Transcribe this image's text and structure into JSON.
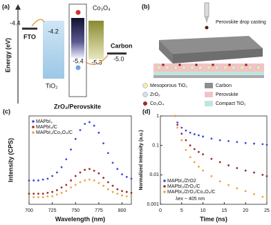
{
  "panel_labels": [
    "(a)",
    "(b)"
  ],
  "energy_diagram": {
    "y_label": "Energy (eV)",
    "fto": "FTO",
    "fto_level": "-4.4",
    "tio2": "TiO₂",
    "tio2_level": "-4.2",
    "perovskite_level": "-5.4",
    "co3o4": "Co₃O₄",
    "co3o4_level": "-5.3",
    "carbon": "Carbon",
    "carbon_level": "-5.0",
    "bottom_label": "ZrO₂/Perovskite"
  },
  "device_schematic": {
    "caption": "Perovskite drop casting",
    "legend": [
      "Mesoporous TiO₂",
      "Carbon",
      "ZrO₂",
      "Perovskite",
      "Co₃O₄",
      "Compact TiO₂"
    ]
  },
  "chart_data": [
    {
      "type": "scatter",
      "panel": "(c)",
      "x_label": "Wavelength (nm)",
      "y_label": "Intensity (CPS)",
      "x": [
        700,
        705,
        710,
        715,
        720,
        725,
        730,
        735,
        740,
        745,
        750,
        755,
        760,
        765,
        770,
        775,
        780,
        785,
        790,
        795,
        800,
        805,
        810
      ],
      "xlim": [
        700,
        810
      ],
      "xticks": [
        700,
        725,
        750,
        775,
        800
      ],
      "ylim": [
        0,
        1
      ],
      "legend": "upper left",
      "series": [
        {
          "name": "MAPbI₃",
          "color": "#3a4bd6",
          "values": [
            0.27,
            0.27,
            0.27,
            0.28,
            0.29,
            0.32,
            0.36,
            0.42,
            0.51,
            0.62,
            0.74,
            0.84,
            0.91,
            0.93,
            0.89,
            0.81,
            0.69,
            0.58,
            0.47,
            0.4,
            0.34,
            0.31,
            0.29
          ]
        },
        {
          "name": "MAPbI₃/C",
          "color": "#9b2a2a",
          "values": [
            0.12,
            0.12,
            0.12,
            0.12,
            0.13,
            0.14,
            0.16,
            0.19,
            0.22,
            0.27,
            0.32,
            0.36,
            0.39,
            0.4,
            0.38,
            0.35,
            0.3,
            0.25,
            0.21,
            0.17,
            0.15,
            0.14,
            0.13
          ]
        },
        {
          "name": "MAPbI₃/Co₃O₄/C",
          "color": "#f0a040",
          "values": [
            0.08,
            0.08,
            0.08,
            0.08,
            0.09,
            0.09,
            0.11,
            0.13,
            0.15,
            0.19,
            0.22,
            0.25,
            0.27,
            0.28,
            0.27,
            0.24,
            0.21,
            0.17,
            0.14,
            0.12,
            0.1,
            0.09,
            0.09
          ]
        }
      ]
    },
    {
      "type": "scatter",
      "panel": "(d)",
      "x_label": "Time (ns)",
      "y_label": "Normalized Intensity (a.u.)",
      "yscale": "log",
      "x": [
        3.5,
        4,
        5,
        6,
        7,
        8,
        9,
        10,
        12,
        14,
        16,
        18,
        20,
        22,
        24,
        25
      ],
      "xlim": [
        0,
        25
      ],
      "xticks": [
        0,
        5,
        10,
        15,
        20,
        25
      ],
      "ylim": [
        0.001,
        1
      ],
      "yticks": [
        0.001,
        0.01,
        0.1,
        1
      ],
      "legend": "lower left",
      "annotation": "λex ~ 405 nm",
      "series": [
        {
          "name": "MAPbI₃/ZrO2",
          "color": "#3a4bd6",
          "values": [
            1,
            0.6,
            0.4,
            0.32,
            0.27,
            0.24,
            0.22,
            0.2,
            0.17,
            0.15,
            0.14,
            0.13,
            0.12,
            0.115,
            0.11,
            0.105
          ]
        },
        {
          "name": "MAPbI₃/ZrO₂/C",
          "color": "#9b2a2a",
          "values": [
            1,
            0.5,
            0.25,
            0.15,
            0.1,
            0.075,
            0.06,
            0.05,
            0.035,
            0.027,
            0.021,
            0.017,
            0.014,
            0.012,
            0.01,
            0.009
          ]
        },
        {
          "name": "MAPbI₃/ZrO₂/Co₃O₄/C",
          "color": "#f0a040",
          "values": [
            1,
            0.4,
            0.15,
            0.07,
            0.04,
            0.027,
            0.019,
            0.014,
            0.009,
            0.006,
            0.0045,
            0.0035,
            0.0028,
            0.0022,
            0.0018,
            0.0016
          ]
        }
      ]
    }
  ]
}
